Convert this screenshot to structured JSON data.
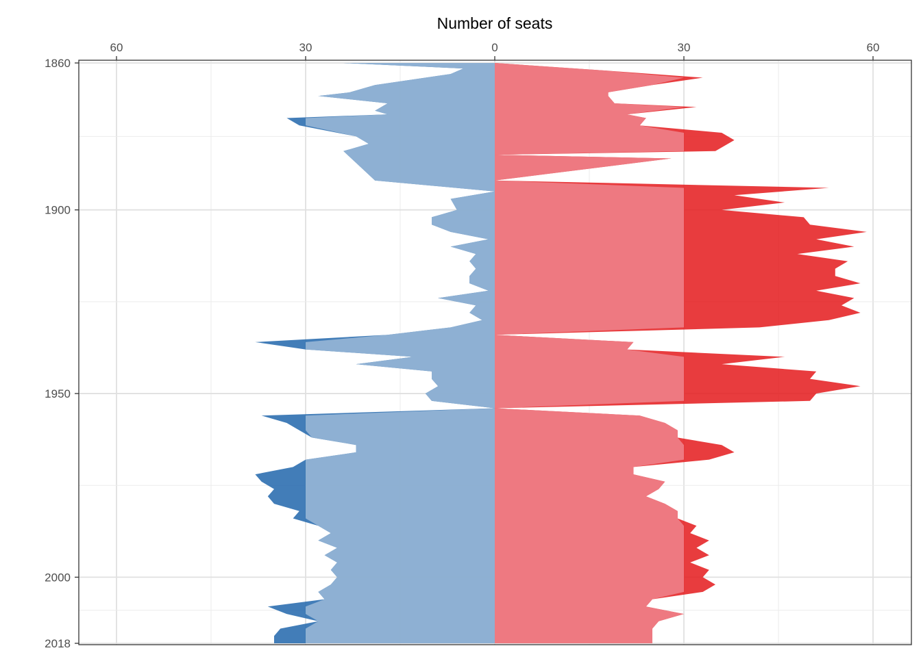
{
  "chart_data": {
    "type": "area",
    "title": "",
    "xlabel": "Number of seats",
    "ylabel": "",
    "xlim": [
      -66,
      65
    ],
    "ylim": [
      1860,
      2018
    ],
    "x_ticks": [
      -60,
      -30,
      0,
      30,
      60
    ],
    "x_tick_labels": [
      "60",
      "30",
      "0",
      "30",
      "60"
    ],
    "y_ticks": [
      1860,
      1900,
      1950,
      2000,
      2018
    ],
    "y_tick_labels": [
      "1860",
      "1900",
      "1950",
      "2000",
      "2018"
    ],
    "grid": true,
    "threshold": 30,
    "note": "Mirrored area chart: left side (negative x) shows one party's seats, right side the other's; darker band beyond 30 seats.",
    "series": [
      {
        "color": "#2166ac",
        "light_color": "#92b3d4",
        "side": "left",
        "points": [
          [
            1860.0,
            24
          ],
          [
            1861.5,
            5
          ],
          [
            1863.0,
            7
          ],
          [
            1866.0,
            19
          ],
          [
            1868.0,
            23
          ],
          [
            1869.0,
            28
          ],
          [
            1871.0,
            17
          ],
          [
            1873.0,
            19
          ],
          [
            1874.0,
            17
          ],
          [
            1875.0,
            33
          ],
          [
            1877.0,
            31
          ],
          [
            1880.0,
            22
          ],
          [
            1882.0,
            20
          ],
          [
            1884.0,
            24
          ],
          [
            1892.0,
            19
          ],
          [
            1895.0,
            0
          ],
          [
            1897.0,
            7
          ],
          [
            1900.0,
            6
          ],
          [
            1902.0,
            10
          ],
          [
            1904.0,
            10
          ],
          [
            1906.0,
            7
          ],
          [
            1908.0,
            1
          ],
          [
            1910.0,
            7
          ],
          [
            1912.0,
            3
          ],
          [
            1914.0,
            4
          ],
          [
            1916.0,
            3
          ],
          [
            1918.0,
            4
          ],
          [
            1920.0,
            4
          ],
          [
            1922.0,
            1
          ],
          [
            1924.0,
            9
          ],
          [
            1926.0,
            3
          ],
          [
            1928.0,
            4
          ],
          [
            1930.0,
            2
          ],
          [
            1932.0,
            7
          ],
          [
            1934.0,
            17
          ],
          [
            1936.0,
            38
          ],
          [
            1938.0,
            30
          ],
          [
            1940.0,
            13
          ],
          [
            1942.0,
            22
          ],
          [
            1944.0,
            10
          ],
          [
            1946.0,
            10
          ],
          [
            1948.0,
            9
          ],
          [
            1950.0,
            11
          ],
          [
            1952.0,
            10
          ],
          [
            1954.0,
            0
          ],
          [
            1956.0,
            37
          ],
          [
            1958.0,
            33
          ],
          [
            1960.0,
            31
          ],
          [
            1962.0,
            29
          ],
          [
            1964.0,
            22
          ],
          [
            1966.0,
            22
          ],
          [
            1968.0,
            30
          ],
          [
            1970.0,
            32
          ],
          [
            1972.0,
            38
          ],
          [
            1974.0,
            37
          ],
          [
            1976.0,
            35
          ],
          [
            1978.0,
            36
          ],
          [
            1980.0,
            35
          ],
          [
            1982.0,
            31
          ],
          [
            1984.0,
            32
          ],
          [
            1986.0,
            28
          ],
          [
            1988.0,
            26
          ],
          [
            1990.0,
            28
          ],
          [
            1992.0,
            25
          ],
          [
            1994.0,
            27
          ],
          [
            1996.0,
            25
          ],
          [
            1998.0,
            26
          ],
          [
            2000.0,
            25
          ],
          [
            2002.0,
            26
          ],
          [
            2004.0,
            28
          ],
          [
            2006.0,
            27
          ],
          [
            2008.0,
            36
          ],
          [
            2010.0,
            33
          ],
          [
            2012.0,
            28
          ],
          [
            2014.0,
            34
          ],
          [
            2016.0,
            35
          ],
          [
            2018.0,
            35
          ]
        ]
      },
      {
        "color": "#e41a1c",
        "light_color": "#ee7c85",
        "side": "right",
        "points": [
          [
            1860.0,
            0
          ],
          [
            1862.0,
            17
          ],
          [
            1864.0,
            33
          ],
          [
            1866.0,
            25
          ],
          [
            1868.0,
            18
          ],
          [
            1869.0,
            18
          ],
          [
            1871.0,
            19
          ],
          [
            1872.0,
            32
          ],
          [
            1874.0,
            21
          ],
          [
            1875.0,
            24
          ],
          [
            1877.0,
            23
          ],
          [
            1879.0,
            36
          ],
          [
            1881.0,
            38
          ],
          [
            1884.0,
            35
          ],
          [
            1885.0,
            0
          ],
          [
            1886.0,
            28
          ],
          [
            1892.0,
            0
          ],
          [
            1894.0,
            53
          ],
          [
            1896.0,
            38
          ],
          [
            1898.0,
            46
          ],
          [
            1900.0,
            36
          ],
          [
            1902.0,
            49
          ],
          [
            1904.0,
            50
          ],
          [
            1906.0,
            59
          ],
          [
            1908.0,
            51
          ],
          [
            1910.0,
            57
          ],
          [
            1912.0,
            48
          ],
          [
            1914.0,
            56
          ],
          [
            1916.0,
            54
          ],
          [
            1918.0,
            54
          ],
          [
            1920.0,
            58
          ],
          [
            1922.0,
            51
          ],
          [
            1924.0,
            57
          ],
          [
            1926.0,
            55
          ],
          [
            1928.0,
            58
          ],
          [
            1930.0,
            53
          ],
          [
            1932.0,
            42
          ],
          [
            1934.0,
            0
          ],
          [
            1936.0,
            22
          ],
          [
            1938.0,
            21
          ],
          [
            1940.0,
            46
          ],
          [
            1942.0,
            36
          ],
          [
            1944.0,
            51
          ],
          [
            1946.0,
            50
          ],
          [
            1948.0,
            58
          ],
          [
            1950.0,
            51
          ],
          [
            1952.0,
            50
          ],
          [
            1954.0,
            0
          ],
          [
            1956.0,
            23
          ],
          [
            1958.0,
            27
          ],
          [
            1960.0,
            29
          ],
          [
            1962.0,
            29
          ],
          [
            1964.0,
            36
          ],
          [
            1966.0,
            38
          ],
          [
            1968.0,
            34
          ],
          [
            1970.0,
            22
          ],
          [
            1972.0,
            22
          ],
          [
            1974.0,
            27
          ],
          [
            1976.0,
            26
          ],
          [
            1978.0,
            24
          ],
          [
            1980.0,
            27
          ],
          [
            1982.0,
            29
          ],
          [
            1984.0,
            29
          ],
          [
            1986.0,
            32
          ],
          [
            1988.0,
            31
          ],
          [
            1990.0,
            34
          ],
          [
            1992.0,
            32
          ],
          [
            1994.0,
            34
          ],
          [
            1996.0,
            31
          ],
          [
            1998.0,
            34
          ],
          [
            2000.0,
            33
          ],
          [
            2002.0,
            35
          ],
          [
            2004.0,
            33
          ],
          [
            2006.0,
            25
          ],
          [
            2008.0,
            24
          ],
          [
            2010.0,
            30
          ],
          [
            2012.0,
            26
          ],
          [
            2014.0,
            25
          ],
          [
            2016.0,
            25
          ],
          [
            2018.0,
            25
          ]
        ]
      }
    ]
  }
}
